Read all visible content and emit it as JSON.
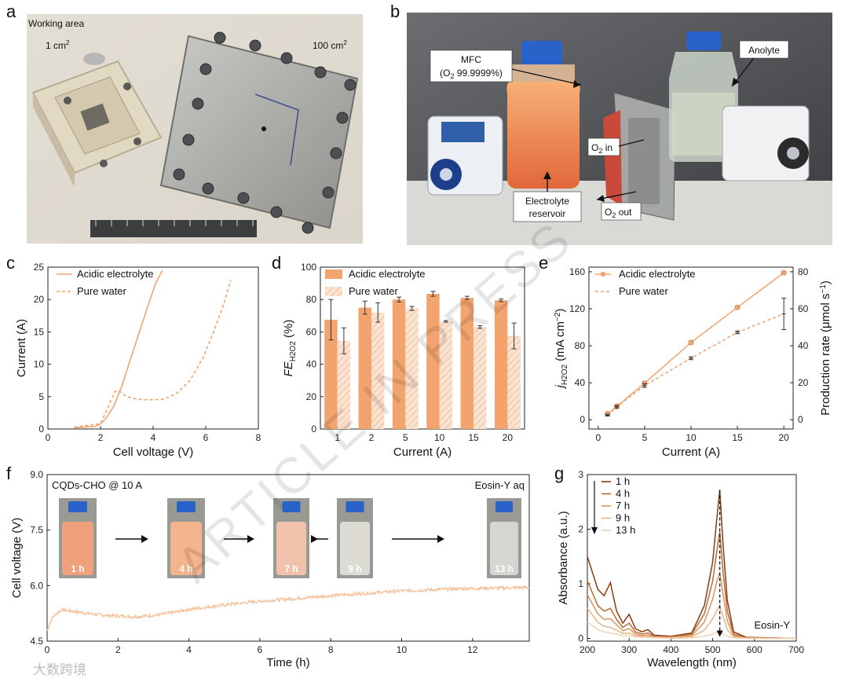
{
  "colors": {
    "accent": "#f2a36e",
    "accent_light": "#f6bf98",
    "dark": "#222222",
    "eosin": [
      "#8a3a10",
      "#b86a2e",
      "#d89460",
      "#e8b488",
      "#f2d2b4"
    ]
  },
  "panels": {
    "a": {
      "letter": "a",
      "working_area": "Working area",
      "small": "1 cm",
      "small_sup": "2",
      "large": "100 cm",
      "large_sup": "2"
    },
    "b": {
      "letter": "b",
      "mfc_l1": "MFC",
      "mfc_l2a": "(O",
      "mfc_l2sub": "2",
      "mfc_l2b": " 99.9999%)",
      "anolyte": "Anolyte",
      "o2_in_a": "O",
      "o2_in_sub": "2",
      "o2_in_b": " in",
      "o2_out_a": "O",
      "o2_out_sub": "2",
      "o2_out_b": " out",
      "electrolyte_l1": "Electrolyte",
      "electrolyte_l2": "reservoir"
    },
    "f_photos": {
      "left_title": "CQDs-CHO @ 10 A",
      "right_title": "Eosin-Y aq",
      "times": [
        "1 h",
        "4 h",
        "7 h",
        "9 h",
        "13 h"
      ]
    },
    "g_label": "Eosin-Y"
  },
  "watermark": "ARTICLE IN PRESS",
  "logo": "大数跨境",
  "chart_data": [
    {
      "id": "c",
      "letter": "c",
      "type": "line",
      "xlabel": "Cell voltage (V)",
      "ylabel": "Current (A)",
      "xlim": [
        0,
        8
      ],
      "ylim": [
        0,
        25
      ],
      "xticks": [
        0,
        2,
        4,
        6,
        8
      ],
      "yticks": [
        0,
        5,
        10,
        15,
        20,
        25
      ],
      "series": [
        {
          "name": "Acidic electrolyte",
          "style": "solid",
          "x": [
            1.0,
            1.8,
            2.0,
            2.2,
            2.5,
            2.8,
            3.0,
            3.3,
            3.6,
            3.9,
            4.1,
            4.35
          ],
          "y": [
            0.2,
            0.4,
            0.8,
            1.6,
            3.5,
            6.5,
            9.0,
            12.8,
            16.5,
            20.2,
            22.5,
            24.5
          ]
        },
        {
          "name": "Pure water",
          "style": "dashed",
          "x": [
            1.0,
            2.0,
            2.3,
            2.55,
            2.7,
            3.0,
            3.4,
            3.9,
            4.4,
            4.9,
            5.4,
            5.9,
            6.3,
            6.7,
            6.95
          ],
          "y": [
            0.3,
            0.8,
            3.5,
            5.8,
            5.9,
            5.0,
            4.6,
            4.5,
            4.6,
            5.5,
            7.5,
            11.0,
            15.0,
            19.5,
            23.0
          ]
        }
      ]
    },
    {
      "id": "d",
      "letter": "d",
      "type": "bar",
      "xlabel": "Current (A)",
      "ylabel_main": "FE",
      "ylabel_sub": "H2O2",
      "ylabel_unit": " (%)",
      "categories": [
        "1",
        "2",
        "5",
        "10",
        "15",
        "20"
      ],
      "ylim": [
        0,
        100
      ],
      "yticks": [
        0,
        20,
        40,
        60,
        80,
        100
      ],
      "series": [
        {
          "name": "Acidic electrolyte",
          "fill": "solid",
          "values": [
            67.5,
            75.0,
            80.0,
            83.5,
            81.0,
            79.5
          ],
          "errors": [
            12.5,
            4.0,
            1.5,
            1.5,
            1.0,
            0.8
          ]
        },
        {
          "name": "Pure water",
          "fill": "hatched",
          "values": [
            54.5,
            72.0,
            74.5,
            66.5,
            63.0,
            57.5
          ],
          "errors": [
            8.0,
            6.0,
            1.2,
            0.5,
            0.8,
            8.0
          ]
        }
      ]
    },
    {
      "id": "e",
      "letter": "e",
      "type": "line",
      "xlabel": "Current (A)",
      "ylabel_main": "j",
      "ylabel_sub": "H2O2",
      "ylabel_unit": " (mA cm",
      "ylabel_sup": "−2",
      "ylabel_close": ")",
      "y2label": "Production rate (μmol s",
      "y2label_sup": "−1",
      "y2label_close": ")",
      "xlim": [
        -1,
        21
      ],
      "xticks": [
        0,
        5,
        10,
        15,
        20
      ],
      "ylim": [
        -10,
        165
      ],
      "yticks": [
        0,
        40,
        80,
        120,
        160
      ],
      "y2lim": [
        -5,
        82.5
      ],
      "y2ticks": [
        0,
        20,
        40,
        60,
        80
      ],
      "series": [
        {
          "name": "Acidic electrolyte",
          "style": "solid",
          "x": [
            1,
            2,
            5,
            10,
            15,
            20
          ],
          "y": [
            6.5,
            14.5,
            39.5,
            83.5,
            121.5,
            159.0
          ],
          "errors": [
            1.0,
            1.5,
            1.5,
            1.5,
            1.5,
            1.5
          ]
        },
        {
          "name": "Pure water",
          "style": "dashed",
          "x": [
            1,
            2,
            5,
            10,
            15,
            20
          ],
          "y": [
            5.0,
            14.0,
            37.0,
            66.5,
            94.5,
            114.5
          ],
          "errors": [
            1.0,
            1.5,
            2.0,
            1.5,
            1.5,
            17.0
          ]
        }
      ]
    },
    {
      "id": "f",
      "letter": "f",
      "type": "line",
      "xlabel": "Time (h)",
      "ylabel": "Cell voltage (V)",
      "xlim": [
        0,
        13.6
      ],
      "xticks": [
        0,
        2,
        4,
        6,
        8,
        10,
        12
      ],
      "ylim": [
        4.5,
        9.0
      ],
      "yticks": [
        4.5,
        6.0,
        7.5,
        9.0
      ],
      "ytick_labels": [
        "4.5",
        "6.0",
        "7.5",
        "9.0"
      ],
      "series": [
        {
          "name": "Cell voltage",
          "style": "noisy",
          "x": [
            0,
            0.15,
            0.4,
            0.8,
            1.2,
            1.6,
            2.0,
            2.4,
            2.8,
            3.2,
            3.6,
            4.0,
            4.6,
            5.2,
            5.8,
            6.4,
            7.0,
            7.6,
            8.2,
            8.8,
            9.4,
            10.0,
            10.6,
            11.2,
            11.8,
            12.4,
            13.0,
            13.6
          ],
          "y": [
            4.78,
            5.15,
            5.35,
            5.3,
            5.24,
            5.2,
            5.18,
            5.16,
            5.18,
            5.22,
            5.28,
            5.36,
            5.43,
            5.5,
            5.56,
            5.61,
            5.65,
            5.7,
            5.74,
            5.78,
            5.82,
            5.86,
            5.88,
            5.9,
            5.92,
            5.93,
            5.94,
            5.95
          ]
        }
      ]
    },
    {
      "id": "g",
      "letter": "g",
      "type": "line",
      "xlabel": "Wavelength (nm)",
      "ylabel": "Absorbance (a.u.)",
      "xlim": [
        200,
        700
      ],
      "xticks": [
        200,
        300,
        400,
        500,
        600,
        700
      ],
      "ylim": [
        -0.05,
        3.0
      ],
      "yticks": [
        0,
        1,
        2,
        3
      ],
      "series": [
        {
          "name": "1 h",
          "x": [
            200,
            225,
            240,
            255,
            270,
            285,
            300,
            315,
            330,
            345,
            360,
            400,
            450,
            480,
            500,
            510,
            517,
            525,
            535,
            550,
            580,
            700
          ],
          "y": [
            1.5,
            0.9,
            0.78,
            1.02,
            0.5,
            0.28,
            0.44,
            0.18,
            0.12,
            0.16,
            0.06,
            0.04,
            0.1,
            0.6,
            1.4,
            2.2,
            2.72,
            1.7,
            0.7,
            0.12,
            0.02,
            0.0
          ]
        },
        {
          "name": "4 h",
          "x": [
            200,
            225,
            240,
            255,
            270,
            285,
            300,
            315,
            330,
            345,
            360,
            400,
            450,
            480,
            500,
            510,
            517,
            525,
            535,
            550,
            580,
            700
          ],
          "y": [
            1.05,
            0.6,
            0.5,
            0.55,
            0.35,
            0.2,
            0.28,
            0.12,
            0.08,
            0.1,
            0.04,
            0.03,
            0.08,
            0.45,
            1.05,
            1.6,
            1.95,
            1.2,
            0.5,
            0.08,
            0.01,
            0.0
          ]
        },
        {
          "name": "7 h",
          "x": [
            200,
            225,
            240,
            255,
            270,
            285,
            300,
            315,
            330,
            345,
            360,
            400,
            450,
            480,
            500,
            510,
            517,
            525,
            535,
            550,
            580,
            700
          ],
          "y": [
            0.8,
            0.45,
            0.35,
            0.36,
            0.25,
            0.14,
            0.18,
            0.08,
            0.05,
            0.06,
            0.03,
            0.02,
            0.05,
            0.3,
            0.72,
            1.05,
            1.2,
            0.8,
            0.32,
            0.05,
            0.01,
            0.0
          ]
        },
        {
          "name": "9 h",
          "x": [
            200,
            225,
            240,
            255,
            270,
            285,
            300,
            315,
            330,
            345,
            360,
            400,
            450,
            480,
            500,
            510,
            517,
            525,
            535,
            550,
            580,
            700
          ],
          "y": [
            0.55,
            0.3,
            0.22,
            0.2,
            0.15,
            0.09,
            0.1,
            0.05,
            0.03,
            0.03,
            0.02,
            0.01,
            0.03,
            0.15,
            0.36,
            0.52,
            0.6,
            0.4,
            0.16,
            0.03,
            0.0,
            0.0
          ]
        },
        {
          "name": "13 h",
          "x": [
            200,
            225,
            240,
            255,
            270,
            285,
            300,
            315,
            330,
            345,
            360,
            400,
            450,
            480,
            500,
            510,
            517,
            525,
            535,
            550,
            580,
            700
          ],
          "y": [
            0.3,
            0.16,
            0.12,
            0.1,
            0.08,
            0.05,
            0.05,
            0.03,
            0.02,
            0.02,
            0.01,
            0.0,
            0.01,
            0.04,
            0.08,
            0.11,
            0.13,
            0.09,
            0.04,
            0.01,
            0.0,
            0.0
          ]
        }
      ]
    }
  ]
}
